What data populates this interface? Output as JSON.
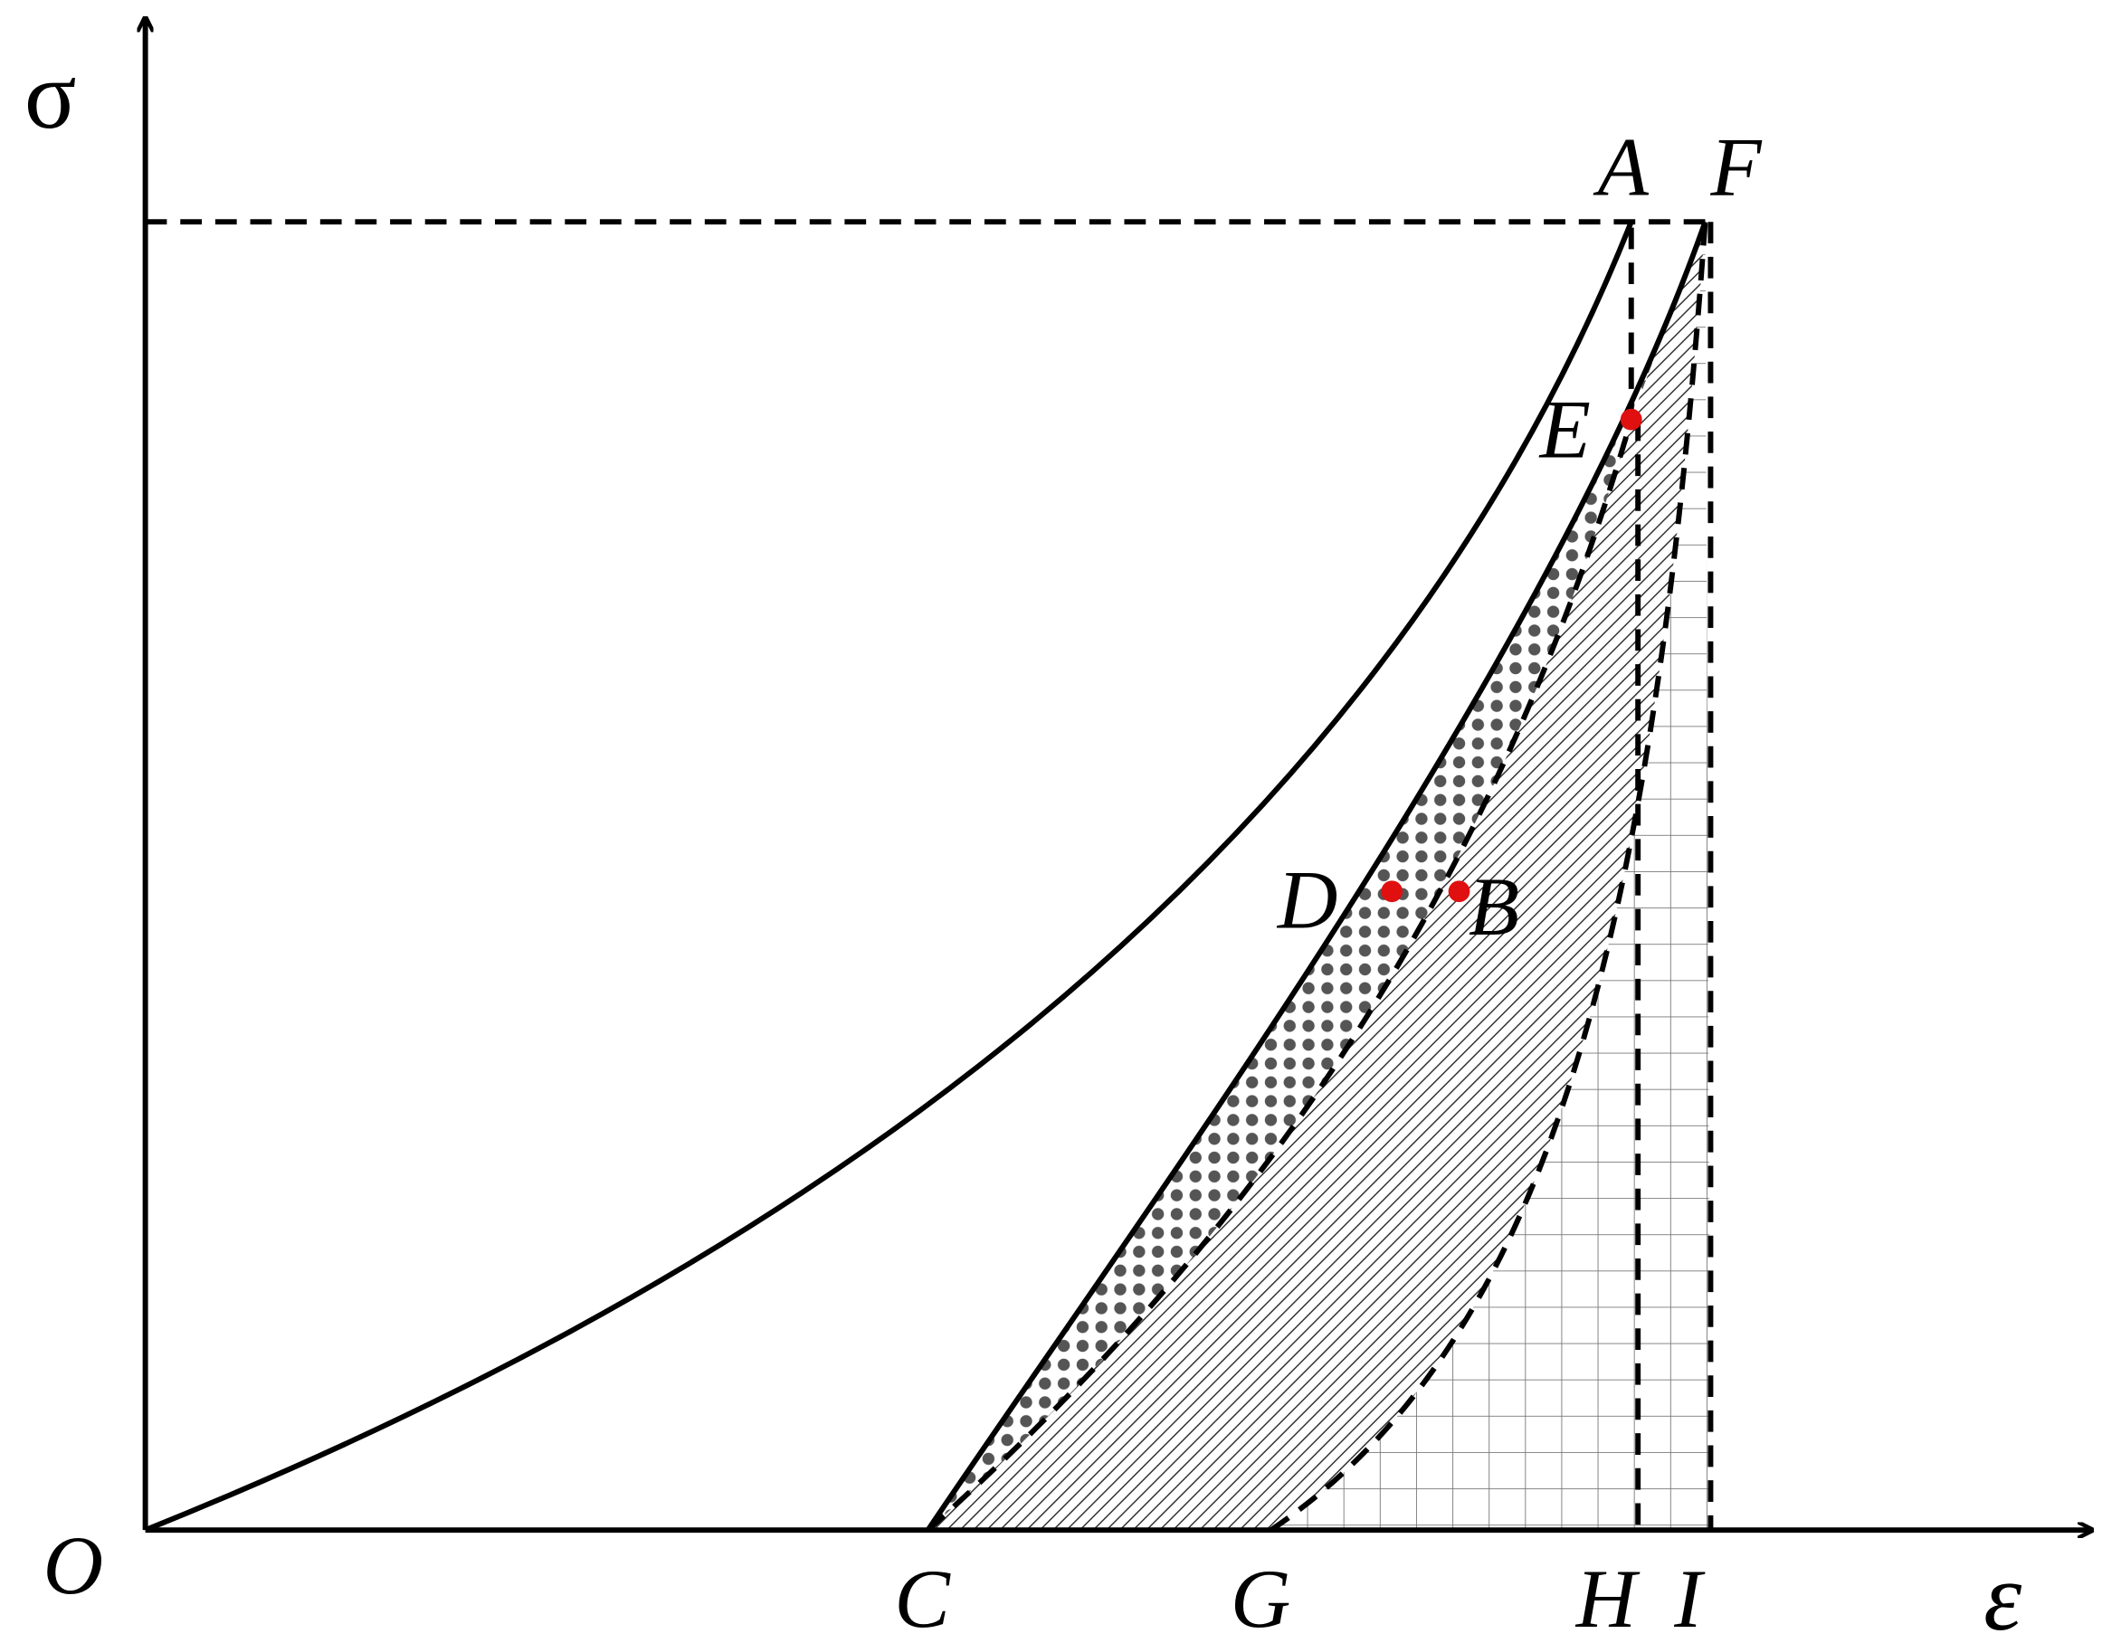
{
  "axes": {
    "y_label": "σ",
    "x_label": "ε",
    "origin": "O"
  },
  "points": {
    "A": "A",
    "B": "B",
    "C": "C",
    "D": "D",
    "E": "E",
    "F": "F",
    "G": "G",
    "H": "H",
    "I": "I"
  }
}
